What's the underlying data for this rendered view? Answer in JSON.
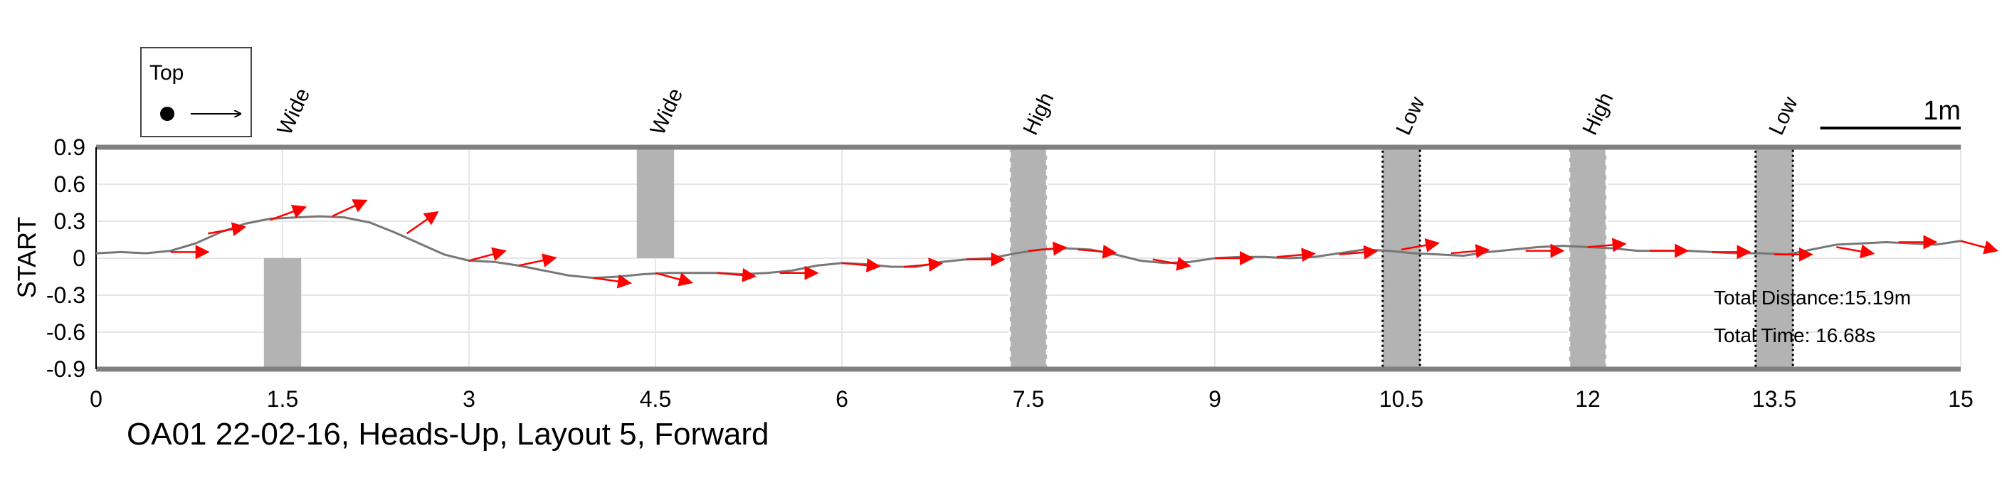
{
  "chart_data": {
    "type": "line",
    "title": "OA01 22-02-16, Heads-Up, Layout 5, Forward",
    "xlabel": "",
    "ylabel": "START",
    "xlim": [
      0,
      15
    ],
    "ylim": [
      -0.9,
      0.9
    ],
    "x_ticks": [
      0,
      1.5,
      3,
      4.5,
      6,
      7.5,
      9,
      10.5,
      12,
      13.5,
      15
    ],
    "x_tick_labels": [
      "0",
      "1.5",
      "3",
      "4.5",
      "6",
      "7.5",
      "9",
      "10.5",
      "12",
      "13.5",
      "15"
    ],
    "y_ticks": [
      0.9,
      0.6,
      0.3,
      0,
      -0.3,
      -0.6,
      -0.9
    ],
    "y_tick_labels": [
      "0.9",
      "0.6",
      "0.3",
      "0",
      "-0.3",
      "-0.6",
      "-0.9"
    ],
    "grid": true,
    "path": {
      "x": [
        0,
        0.2,
        0.4,
        0.6,
        0.8,
        1.0,
        1.2,
        1.4,
        1.6,
        1.8,
        2.0,
        2.2,
        2.4,
        2.6,
        2.8,
        3.0,
        3.2,
        3.4,
        3.6,
        3.8,
        4.0,
        4.2,
        4.4,
        4.6,
        4.8,
        5.0,
        5.2,
        5.4,
        5.6,
        5.8,
        6.0,
        6.2,
        6.4,
        6.6,
        6.8,
        7.0,
        7.2,
        7.4,
        7.6,
        7.8,
        8.0,
        8.2,
        8.4,
        8.6,
        8.8,
        9.0,
        9.2,
        9.4,
        9.6,
        9.8,
        10.0,
        10.2,
        10.4,
        10.6,
        10.8,
        11.0,
        11.2,
        11.4,
        11.6,
        11.8,
        12.0,
        12.2,
        12.4,
        12.6,
        12.8,
        13.0,
        13.2,
        13.4,
        13.6,
        13.8,
        14.0,
        14.2,
        14.4,
        14.6,
        14.8,
        15.0
      ],
      "y": [
        0.04,
        0.05,
        0.04,
        0.06,
        0.12,
        0.21,
        0.28,
        0.32,
        0.33,
        0.34,
        0.33,
        0.29,
        0.21,
        0.12,
        0.03,
        -0.02,
        -0.03,
        -0.06,
        -0.1,
        -0.14,
        -0.16,
        -0.15,
        -0.13,
        -0.12,
        -0.12,
        -0.12,
        -0.13,
        -0.12,
        -0.1,
        -0.06,
        -0.04,
        -0.05,
        -0.07,
        -0.07,
        -0.03,
        -0.01,
        0.0,
        0.04,
        0.07,
        0.08,
        0.07,
        0.03,
        -0.02,
        -0.04,
        -0.03,
        0.0,
        0.01,
        0.01,
        0.0,
        0.01,
        0.04,
        0.07,
        0.06,
        0.04,
        0.03,
        0.02,
        0.05,
        0.07,
        0.09,
        0.1,
        0.09,
        0.08,
        0.06,
        0.06,
        0.06,
        0.05,
        0.04,
        0.04,
        0.03,
        0.07,
        0.11,
        0.12,
        0.13,
        0.12,
        0.11,
        0.14
      ]
    },
    "heading_arrows": {
      "x": [
        0.6,
        0.9,
        1.4,
        1.9,
        2.5,
        3.0,
        3.4,
        4.0,
        4.5,
        5.0,
        5.5,
        6.0,
        6.5,
        7.0,
        7.5,
        7.9,
        8.5,
        9.0,
        9.5,
        10.0,
        10.5,
        10.9,
        11.5,
        12.0,
        12.5,
        13.0,
        13.5,
        14.0,
        14.5,
        15.0
      ],
      "y": [
        0.05,
        0.2,
        0.31,
        0.34,
        0.2,
        -0.02,
        -0.06,
        -0.16,
        -0.12,
        -0.12,
        -0.12,
        -0.04,
        -0.07,
        -0.01,
        0.06,
        0.07,
        -0.01,
        0.0,
        0.01,
        0.03,
        0.07,
        0.04,
        0.06,
        0.09,
        0.06,
        0.05,
        0.03,
        0.09,
        0.13,
        0.14
      ],
      "angle_deg": [
        0,
        10,
        20,
        25,
        35,
        15,
        12,
        -8,
        -15,
        -5,
        0,
        -5,
        5,
        0,
        5,
        -5,
        -10,
        0,
        5,
        5,
        10,
        5,
        0,
        5,
        0,
        0,
        0,
        -10,
        0,
        -15
      ],
      "color": "#ff0000"
    },
    "obstacles": [
      {
        "label": "Wide",
        "x_start": 1.35,
        "x_end": 1.65,
        "y_start": -0.9,
        "y_end": 0.0,
        "style": "plain"
      },
      {
        "label": "Wide",
        "x_start": 4.35,
        "x_end": 4.65,
        "y_start": 0.0,
        "y_end": 0.9,
        "style": "plain"
      },
      {
        "label": "High",
        "x_start": 7.35,
        "x_end": 7.65,
        "y_start": -0.9,
        "y_end": 0.9,
        "style": "dashed-white"
      },
      {
        "label": "Low",
        "x_start": 10.35,
        "x_end": 10.65,
        "y_start": -0.9,
        "y_end": 0.9,
        "style": "dotted-black"
      },
      {
        "label": "High",
        "x_start": 11.85,
        "x_end": 12.15,
        "y_start": -0.9,
        "y_end": 0.9,
        "style": "dashed-white"
      },
      {
        "label": "Low",
        "x_start": 13.35,
        "x_end": 13.65,
        "y_start": -0.9,
        "y_end": 0.9,
        "style": "dotted-black"
      }
    ],
    "annotations": {
      "total_distance": "Total Distance:15.19m",
      "total_time": "Total Time: 16.68s"
    },
    "legend": {
      "label": "Top",
      "placement": "top-left"
    },
    "scale_bar": {
      "label": "1m",
      "length": 1
    },
    "colors": {
      "path": "#777777",
      "arrow": "#ff0000",
      "obstacle": "#b3b3b3",
      "grid": "#e6e6e6",
      "boundary": "#808080"
    }
  }
}
